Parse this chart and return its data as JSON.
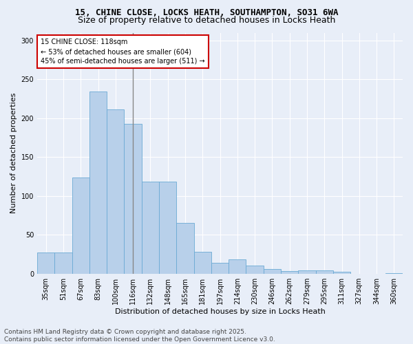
{
  "title1": "15, CHINE CLOSE, LOCKS HEATH, SOUTHAMPTON, SO31 6WA",
  "title2": "Size of property relative to detached houses in Locks Heath",
  "xlabel": "Distribution of detached houses by size in Locks Heath",
  "ylabel": "Number of detached properties",
  "categories": [
    "35sqm",
    "51sqm",
    "67sqm",
    "83sqm",
    "100sqm",
    "116sqm",
    "132sqm",
    "148sqm",
    "165sqm",
    "181sqm",
    "197sqm",
    "214sqm",
    "230sqm",
    "246sqm",
    "262sqm",
    "279sqm",
    "295sqm",
    "311sqm",
    "327sqm",
    "344sqm",
    "360sqm"
  ],
  "values": [
    27,
    27,
    124,
    234,
    211,
    193,
    118,
    118,
    65,
    28,
    14,
    18,
    10,
    6,
    3,
    4,
    4,
    2,
    0,
    0,
    1
  ],
  "bar_color": "#b8d0ea",
  "bar_edge_color": "#6aaad4",
  "highlight_index": 5,
  "marker_line_color": "#888888",
  "annotation_text": "15 CHINE CLOSE: 118sqm\n← 53% of detached houses are smaller (604)\n45% of semi-detached houses are larger (511) →",
  "annotation_box_color": "#ffffff",
  "annotation_box_edge_color": "#cc0000",
  "ylim": [
    0,
    310
  ],
  "yticks": [
    0,
    50,
    100,
    150,
    200,
    250,
    300
  ],
  "footer_text": "Contains HM Land Registry data © Crown copyright and database right 2025.\nContains public sector information licensed under the Open Government Licence v3.0.",
  "background_color": "#e8eef8",
  "plot_bg_color": "#e8eef8",
  "grid_color": "#ffffff",
  "title1_fontsize": 9,
  "title2_fontsize": 9,
  "axis_label_fontsize": 8,
  "tick_fontsize": 7,
  "annotation_fontsize": 7,
  "footer_fontsize": 6.5
}
